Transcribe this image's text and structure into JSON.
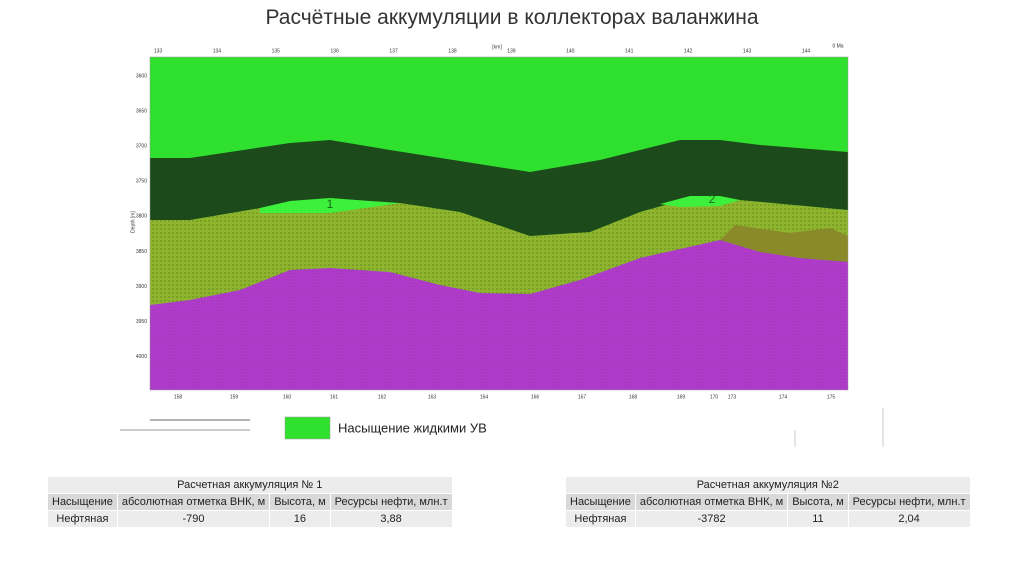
{
  "title": "Расчётные аккумуляции в коллекторах валанжина",
  "section": {
    "top_ticks": [
      "133",
      "134",
      "135",
      "136",
      "137",
      "138",
      "139",
      "140",
      "141",
      "142",
      "143",
      "144"
    ],
    "top_unit": "[km]",
    "age": "0 Ma",
    "depth_label": "Depth [m]",
    "depth_ticks": [
      "3600",
      "3650",
      "3700",
      "3750",
      "3800",
      "3850",
      "3900",
      "3950",
      "4000"
    ],
    "bottom_ticks": [
      "158",
      "159",
      "160",
      "161",
      "162",
      "163",
      "164",
      "166",
      "167",
      "168",
      "169",
      "170",
      "173",
      "174",
      "175"
    ],
    "zone_labels": [
      "1",
      "2"
    ]
  },
  "legend": "Насыщение жидкими УВ",
  "tables": [
    {
      "title": "Расчетная аккумуляция № 1",
      "header": [
        "Насыщение",
        "абсолютная отметка ВНК, м",
        "Высота, м",
        "Ресурсы нефти, млн.т"
      ],
      "rows": [
        [
          "Нефтяная",
          "-790",
          "16",
          "3,88"
        ]
      ]
    },
    {
      "title": "Расчетная аккумуляция №2",
      "header": [
        "Насыщение",
        "абсолютная отметка ВНК, м",
        "Высота, м",
        "Ресурсы нефти, млн.т"
      ],
      "rows": [
        [
          "Нефтяная",
          "-3782",
          "11",
          "2,04"
        ]
      ]
    }
  ]
}
